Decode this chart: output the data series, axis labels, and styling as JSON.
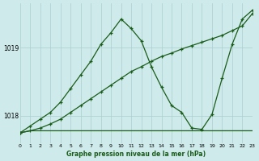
{
  "title": "Graphe pression niveau de la mer (hPa)",
  "background_color": "#ceeaea",
  "grid_color": "#aacece",
  "line_color": "#1a5c1a",
  "ylim": [
    1017.6,
    1019.65
  ],
  "yticks": [
    1018,
    1019
  ],
  "xlim": [
    0,
    23
  ],
  "xticks": [
    0,
    1,
    2,
    3,
    4,
    5,
    6,
    7,
    8,
    9,
    10,
    11,
    12,
    13,
    14,
    15,
    16,
    17,
    18,
    19,
    20,
    21,
    22,
    23
  ],
  "line1_x": [
    0,
    1,
    2,
    3,
    4,
    5,
    6,
    7,
    8,
    9,
    10,
    11,
    12,
    13,
    14,
    15,
    16,
    17,
    18,
    19,
    20,
    21,
    22,
    23
  ],
  "line1_y": [
    1017.75,
    1017.78,
    1017.78,
    1017.78,
    1017.78,
    1017.78,
    1017.78,
    1017.78,
    1017.78,
    1017.78,
    1017.78,
    1017.78,
    1017.78,
    1017.78,
    1017.78,
    1017.78,
    1017.78,
    1017.78,
    1017.78,
    1017.78,
    1017.78,
    1017.78,
    1017.78,
    1017.78
  ],
  "line2_x": [
    0,
    1,
    2,
    3,
    4,
    5,
    6,
    7,
    8,
    9,
    10,
    11,
    12,
    13,
    14,
    15,
    16,
    17,
    18,
    19,
    20,
    21,
    22,
    23
  ],
  "line2_y": [
    1017.75,
    1017.78,
    1017.82,
    1017.88,
    1017.95,
    1018.05,
    1018.15,
    1018.25,
    1018.35,
    1018.45,
    1018.55,
    1018.65,
    1018.72,
    1018.8,
    1018.87,
    1018.92,
    1018.98,
    1019.03,
    1019.08,
    1019.13,
    1019.18,
    1019.25,
    1019.32,
    1019.5
  ],
  "line3_x": [
    0,
    1,
    2,
    3,
    4,
    5,
    6,
    7,
    8,
    9,
    10,
    11,
    12,
    13,
    14,
    15,
    16,
    17,
    18,
    19,
    20,
    21,
    22,
    23
  ],
  "line3_y": [
    1017.75,
    1017.85,
    1017.95,
    1018.05,
    1018.2,
    1018.4,
    1018.6,
    1018.8,
    1019.05,
    1019.22,
    1019.42,
    1019.28,
    1019.1,
    1018.72,
    1018.42,
    1018.15,
    1018.05,
    1017.82,
    1017.8,
    1018.02,
    1018.55,
    1019.05,
    1019.42,
    1019.55
  ]
}
